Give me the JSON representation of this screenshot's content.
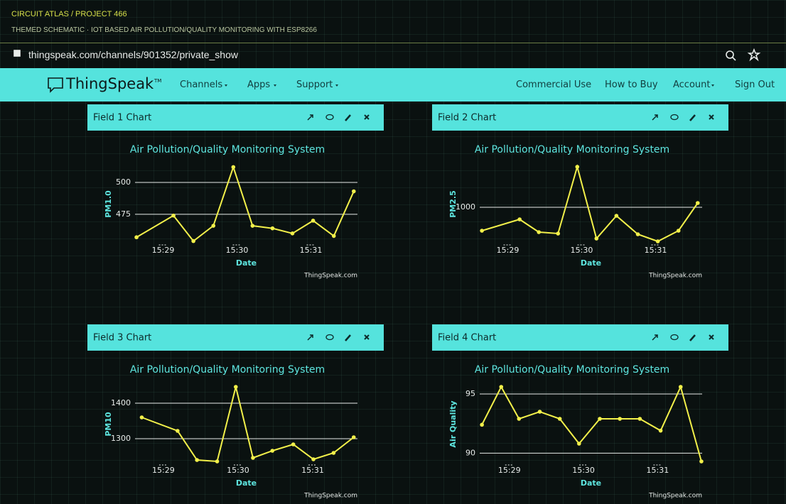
{
  "header": {
    "breadcrumb": "CIRCUIT ATLAS / PROJECT 466",
    "subtitle": "THEMED SCHEMATIC · IOT BASED AIR POLLUTION/QUALITY MONITORING WITH ESP8266"
  },
  "browser": {
    "url": "thingspeak.com/channels/901352/private_show"
  },
  "nav": {
    "logo": "ThingSpeak",
    "trademark": "TM",
    "left": [
      "Channels",
      "Apps",
      "Support"
    ],
    "right": [
      "Commercial Use",
      "How to Buy",
      "Account",
      "Sign Out"
    ]
  },
  "panels": [
    {
      "title": "Field 1 Chart",
      "chart": {
        "type": "line",
        "title": "Air Pollution/Quality Monitoring System",
        "xlabel": "Date",
        "ylabel": "PM1.0",
        "credit": "ThingSpeak.com",
        "color": "#f2f04a",
        "x": [
          928.64,
          929.14,
          929.41,
          929.68,
          929.95,
          930.21,
          930.48,
          930.75,
          931.03,
          931.31,
          931.58
        ],
        "values": [
          457,
          474,
          454,
          466,
          512,
          466,
          464,
          460,
          470,
          458,
          493
        ],
        "xlim": [
          928.62,
          931.63
        ],
        "ylim": [
          451,
          515
        ],
        "xticks": [
          {
            "value": 929,
            "label": "15:29"
          },
          {
            "value": 930,
            "label": "15:30"
          },
          {
            "value": 931,
            "label": "15:31"
          }
        ],
        "yticks": [
          475,
          500
        ],
        "grid": true
      }
    },
    {
      "title": "Field 2 Chart",
      "chart": {
        "type": "line",
        "title": "Air Pollution/Quality Monitoring System",
        "xlabel": "Date",
        "ylabel": "PM2.5",
        "credit": "ThingSpeak.com",
        "color": "#f2f04a",
        "x": [
          928.65,
          929.16,
          929.42,
          929.68,
          929.94,
          930.2,
          930.47,
          930.76,
          931.03,
          931.31,
          931.57
        ],
        "values": [
          934,
          966,
          930,
          926,
          1114,
          912,
          976,
          924,
          904,
          934,
          1012
        ],
        "xlim": [
          928.62,
          931.63
        ],
        "ylim": [
          894,
          1124
        ],
        "xticks": [
          {
            "value": 929,
            "label": "15:29"
          },
          {
            "value": 930,
            "label": "15:30"
          },
          {
            "value": 931,
            "label": "15:31"
          }
        ],
        "yticks": [
          1000
        ],
        "grid": true
      }
    },
    {
      "title": "Field 3 Chart",
      "chart": {
        "type": "line",
        "title": "Air Pollution/Quality Monitoring System",
        "xlabel": "Date",
        "ylabel": "PM10",
        "credit": "ThingSpeak.com",
        "color": "#f2f04a",
        "x": [
          928.71,
          929.19,
          929.45,
          929.72,
          929.97,
          930.2,
          930.46,
          930.74,
          931.01,
          931.28,
          931.55
        ],
        "values": [
          1360,
          1322,
          1240,
          1236,
          1446,
          1246,
          1266,
          1284,
          1242,
          1260,
          1304
        ],
        "xlim": [
          928.62,
          931.6
        ],
        "ylim": [
          1226,
          1456
        ],
        "xticks": [
          {
            "value": 929,
            "label": "15:29"
          },
          {
            "value": 930,
            "label": "15:30"
          },
          {
            "value": 931,
            "label": "15:31"
          }
        ],
        "yticks": [
          1300,
          1400
        ],
        "grid": true
      }
    },
    {
      "title": "Field 4 Chart",
      "chart": {
        "type": "line",
        "title": "Air Pollution/Quality Monitoring System",
        "xlabel": "Date",
        "ylabel": "Air Quality",
        "credit": "ThingSpeak.com",
        "color": "#f2f04a",
        "x": [
          928.63,
          928.89,
          929.13,
          929.41,
          929.68,
          929.94,
          930.22,
          930.49,
          930.76,
          931.04,
          931.31,
          931.59
        ],
        "values": [
          92.4,
          95.6,
          92.9,
          93.5,
          92.9,
          90.8,
          92.9,
          92.9,
          92.9,
          91.9,
          95.6,
          89.3
        ],
        "xlim": [
          928.6,
          931.6
        ],
        "ylim": [
          89,
          95.9
        ],
        "xticks": [
          {
            "value": 929,
            "label": "15:29"
          },
          {
            "value": 930,
            "label": "15:30"
          },
          {
            "value": 931,
            "label": "15:31"
          }
        ],
        "yticks": [
          90,
          95
        ],
        "grid": true
      }
    }
  ]
}
